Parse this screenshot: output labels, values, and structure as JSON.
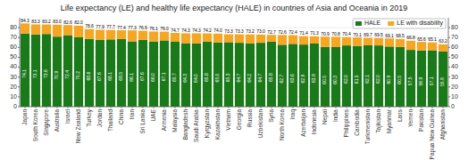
{
  "chart_data": {
    "type": "bar",
    "title": "Life expectancy (LE) and healthy life expectancy (HALE) in countries of Asia and Oceania in 2019",
    "categories": [
      "Japan",
      "South Korea",
      "Singapore",
      "Australia",
      "Israel",
      "New Zealand",
      "Turkey",
      "Jordan",
      "Thailand",
      "China",
      "Iran",
      "Sri Lanka",
      "UAE",
      "Armenia",
      "Malaysia",
      "Bangladesh",
      "Saudi Arabia",
      "Kyrgyzstan",
      "Kazakhstan",
      "Vietnam",
      "Georgia",
      "Russia",
      "Uzbekistan",
      "Syria",
      "North Korea",
      "Iraq",
      "Azerbaijan",
      "Indonesia",
      "Nepal",
      "India",
      "Philippines",
      "Cambodia",
      "Turkmenistan",
      "Tajikistan",
      "Myanmar",
      "Laos",
      "Yemen",
      "Pakistan",
      "Papua New Guinea",
      "Afghanistan"
    ],
    "stacked": true,
    "series": [
      {
        "name": "HALE",
        "color": "#1a7a1a",
        "data_labels": true,
        "values": [
          74.1,
          73.1,
          73.6,
          70.9,
          72.4,
          70.2,
          68.6,
          67.6,
          68.1,
          68.5,
          66.1,
          67.6,
          66.0,
          67.1,
          65.7,
          64.3,
          64.0,
          65.8,
          65.0,
          65.3,
          64.7,
          64.2,
          64.7,
          65.8,
          62.7,
          63.6,
          62.9,
          63.9,
          60.5,
          60.3,
          62.0,
          61.5,
          62.1,
          62.0,
          60.9,
          60.5,
          57.5,
          56.9,
          57.1,
          55.9
        ],
        "value_labels": [
          "74.1",
          "73.1",
          "73.6",
          "70.9",
          "72.4",
          "70.2",
          "68.6",
          "67.6",
          "68.1",
          "68.5",
          "66.1",
          "67.6",
          "66.0",
          "67.1",
          "65.7",
          "64.3",
          "64.0",
          "65.8",
          "65.0",
          "65.3",
          "64.7",
          "64.2",
          "64.7",
          "65.8",
          "62.7",
          "63.6",
          "62.9",
          "63.9",
          "60.5",
          "60.3",
          "62.0",
          "61.5",
          "62.1",
          "62.0",
          "60.9",
          "60.5",
          "57.5",
          "56.9",
          "57.1",
          "55.9"
        ]
      },
      {
        "name": "LE with disability",
        "color": "#f5a623",
        "values": [
          10.2,
          10.2,
          9.6,
          12.1,
          10.2,
          11.8,
          10.0,
          10.3,
          9.6,
          8.9,
          11.2,
          9.3,
          10.1,
          8.9,
          9.0,
          10.0,
          10.3,
          8.4,
          9.0,
          8.0,
          8.6,
          9.0,
          8.3,
          6.9,
          9.9,
          8.8,
          8.5,
          7.4,
          10.4,
          10.5,
          8.4,
          8.6,
          7.6,
          7.5,
          8.2,
          8.0,
          9.3,
          8.7,
          8.0,
          7.3
        ]
      }
    ],
    "totals": [
      84.3,
      83.3,
      83.2,
      83.0,
      82.6,
      82.0,
      78.6,
      77.9,
      77.7,
      77.4,
      77.3,
      76.9,
      76.1,
      76.0,
      74.7,
      74.3,
      74.3,
      74.2,
      74.0,
      73.3,
      73.3,
      73.2,
      73.0,
      72.7,
      72.6,
      72.4,
      71.4,
      71.3,
      70.9,
      70.8,
      70.4,
      70.1,
      69.7,
      69.5,
      69.1,
      68.5,
      66.8,
      65.6,
      65.1,
      63.2
    ],
    "total_labels": [
      "84.3",
      "83.3",
      "83.2",
      "83.0",
      "82.6",
      "82.0",
      "78.6",
      "77.9",
      "77.7",
      "77.4",
      "77.3",
      "76.9",
      "76.1",
      "76.0",
      "74.7",
      "74.3",
      "74.3",
      "74.2",
      "74.0",
      "73.3",
      "73.3",
      "73.2",
      "73.0",
      "72.7",
      "72.6",
      "72.4",
      "71.4",
      "71.3",
      "70.9",
      "70.8",
      "70.4",
      "70.1",
      "69.7",
      "69.5",
      "69.1",
      "68.5",
      "66.8",
      "65.6",
      "65.1",
      "63.2"
    ],
    "ylim": [
      0,
      90
    ],
    "yticks": [
      0,
      10,
      20,
      30,
      40,
      50,
      60,
      70,
      80
    ],
    "y2lim": [
      0,
      90
    ],
    "y2ticks": [
      0,
      10,
      20,
      30,
      40,
      50,
      60,
      70,
      80
    ],
    "grid": true,
    "legend": "upper right"
  }
}
